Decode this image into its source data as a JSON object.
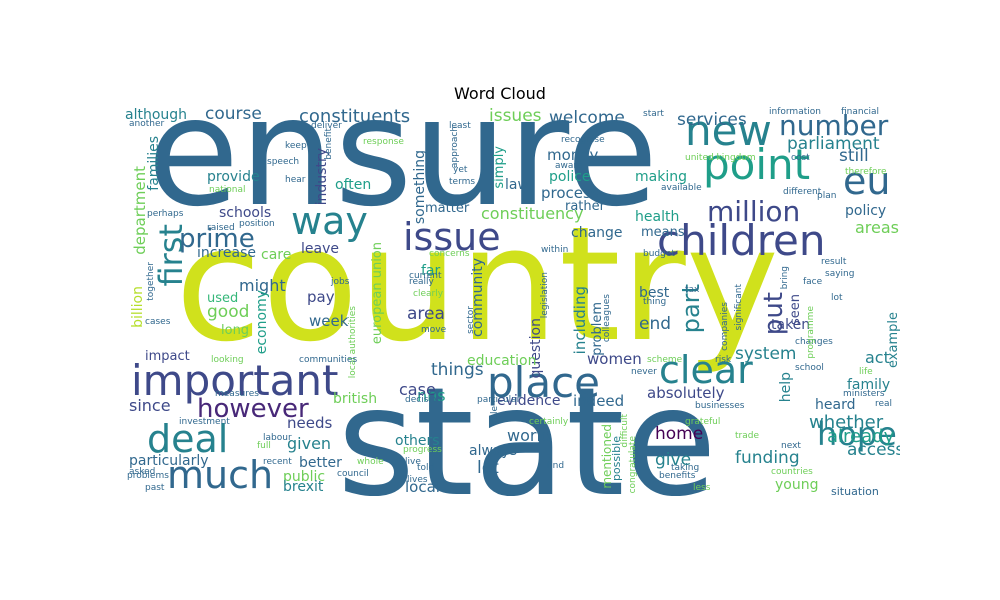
{
  "chart_data": {
    "type": "wordcloud",
    "title": "Word Cloud",
    "palette": [
      "#440154",
      "#482878",
      "#3e4989",
      "#31688e",
      "#26828e",
      "#1f9e89",
      "#35b779",
      "#6ece58",
      "#b5de2b",
      "#d9e21a"
    ],
    "words": [
      {
        "text": "ensure",
        "weight": 100,
        "color": "#31688e"
      },
      {
        "text": "country",
        "weight": 98,
        "color": "#d0e11c"
      },
      {
        "text": "state",
        "weight": 92,
        "color": "#31688e"
      },
      {
        "text": "children",
        "weight": 36,
        "color": "#3e4989"
      },
      {
        "text": "important",
        "weight": 36,
        "color": "#3e4989"
      },
      {
        "text": "point",
        "weight": 34,
        "color": "#1f9e89"
      },
      {
        "text": "new",
        "weight": 34,
        "color": "#26828e"
      },
      {
        "text": "place",
        "weight": 33,
        "color": "#31688e"
      },
      {
        "text": "issue",
        "weight": 32,
        "color": "#3e4989"
      },
      {
        "text": "much",
        "weight": 32,
        "color": "#31688e"
      },
      {
        "text": "clear",
        "weight": 30,
        "color": "#26828e"
      },
      {
        "text": "deal",
        "weight": 30,
        "color": "#26828e"
      },
      {
        "text": "way",
        "weight": 30,
        "color": "#26828e"
      },
      {
        "text": "eu",
        "weight": 28,
        "color": "#31688e"
      },
      {
        "text": "hope",
        "weight": 26,
        "color": "#26828e"
      },
      {
        "text": "first",
        "weight": 26,
        "color": "#26828e"
      },
      {
        "text": "million",
        "weight": 24,
        "color": "#3e4989"
      },
      {
        "text": "number",
        "weight": 24,
        "color": "#31688e"
      },
      {
        "text": "however",
        "weight": 22,
        "color": "#482878"
      },
      {
        "text": "put",
        "weight": 22,
        "color": "#3e4989"
      },
      {
        "text": "prime",
        "weight": 22,
        "color": "#31688e"
      },
      {
        "text": "part",
        "weight": 20,
        "color": "#26828e"
      },
      {
        "text": "constituents",
        "weight": 17,
        "color": "#31688e"
      },
      {
        "text": "parliament",
        "weight": 16,
        "color": "#26828e"
      },
      {
        "text": "services",
        "weight": 16,
        "color": "#31688e"
      },
      {
        "text": "constituency",
        "weight": 16,
        "color": "#6ece58"
      },
      {
        "text": "still",
        "weight": 16,
        "color": "#31688e"
      },
      {
        "text": "welcome",
        "weight": 16,
        "color": "#31688e"
      },
      {
        "text": "course",
        "weight": 16,
        "color": "#31688e"
      },
      {
        "text": "issues",
        "weight": 16,
        "color": "#6ece58"
      },
      {
        "text": "things",
        "weight": 16,
        "color": "#31688e"
      },
      {
        "text": "system",
        "weight": 16,
        "color": "#26828e"
      },
      {
        "text": "policy",
        "weight": 13,
        "color": "#31688e"
      },
      {
        "text": "areas",
        "weight": 14,
        "color": "#6ece58"
      },
      {
        "text": "although",
        "weight": 13,
        "color": "#26828e"
      },
      {
        "text": "department",
        "weight": 14,
        "color": "#6ece58"
      },
      {
        "text": "families",
        "weight": 13,
        "color": "#26828e"
      },
      {
        "text": "money",
        "weight": 14,
        "color": "#31688e"
      },
      {
        "text": "industry",
        "weight": 14,
        "color": "#3e4989"
      },
      {
        "text": "something",
        "weight": 14,
        "color": "#31688e"
      },
      {
        "text": "police",
        "weight": 14,
        "color": "#1f9e89"
      },
      {
        "text": "process",
        "weight": 14,
        "color": "#31688e"
      },
      {
        "text": "making",
        "weight": 13,
        "color": "#1f9e89"
      },
      {
        "text": "often",
        "weight": 13,
        "color": "#1f9e89"
      },
      {
        "text": "law",
        "weight": 13,
        "color": "#31688e"
      },
      {
        "text": "provide",
        "weight": 13,
        "color": "#26828e"
      },
      {
        "text": "simply",
        "weight": 13,
        "color": "#1f9e89"
      },
      {
        "text": "rather",
        "weight": 13,
        "color": "#31688e"
      },
      {
        "text": "matter",
        "weight": 13,
        "color": "#31688e"
      },
      {
        "text": "schools",
        "weight": 14,
        "color": "#3e4989"
      },
      {
        "text": "health",
        "weight": 14,
        "color": "#1f9e89"
      },
      {
        "text": "means",
        "weight": 13,
        "color": "#31688e"
      },
      {
        "text": "change",
        "weight": 13,
        "color": "#31688e"
      },
      {
        "text": "leave",
        "weight": 13,
        "color": "#3e4989"
      },
      {
        "text": "care",
        "weight": 13,
        "color": "#6ece58"
      },
      {
        "text": "increase",
        "weight": 13,
        "color": "#31688e"
      },
      {
        "text": "far",
        "weight": 13,
        "color": "#1f9e89"
      },
      {
        "text": "european union",
        "weight": 13,
        "color": "#6ece58"
      },
      {
        "text": "billion",
        "weight": 13,
        "color": "#b5de2b"
      },
      {
        "text": "might",
        "weight": 16,
        "color": "#31688e"
      },
      {
        "text": "good",
        "weight": 16,
        "color": "#6ece58"
      },
      {
        "text": "pay",
        "weight": 14,
        "color": "#3e4989"
      },
      {
        "text": "area",
        "weight": 14,
        "color": "#3e4989"
      },
      {
        "text": "used",
        "weight": 13,
        "color": "#35b779"
      },
      {
        "text": "long",
        "weight": 13,
        "color": "#6ece58"
      },
      {
        "text": "economy",
        "weight": 13,
        "color": "#1f9e89"
      },
      {
        "text": "week",
        "weight": 13,
        "color": "#31688e"
      },
      {
        "text": "community",
        "weight": 13,
        "color": "#31688e"
      },
      {
        "text": "question",
        "weight": 13,
        "color": "#3e4989"
      },
      {
        "text": "including",
        "weight": 14,
        "color": "#26828e"
      },
      {
        "text": "problem",
        "weight": 13,
        "color": "#31688e"
      },
      {
        "text": "best",
        "weight": 13,
        "color": "#31688e"
      },
      {
        "text": "end",
        "weight": 16,
        "color": "#31688e"
      },
      {
        "text": "women",
        "weight": 14,
        "color": "#3e4989"
      },
      {
        "text": "taken",
        "weight": 13,
        "color": "#3e4989"
      },
      {
        "text": "seen",
        "weight": 13,
        "color": "#3e4989"
      },
      {
        "text": "help",
        "weight": 14,
        "color": "#26828e"
      },
      {
        "text": "heard",
        "weight": 13,
        "color": "#31688e"
      },
      {
        "text": "act",
        "weight": 14,
        "color": "#26828e"
      },
      {
        "text": "family",
        "weight": 13,
        "color": "#26828e"
      },
      {
        "text": "example",
        "weight": 13,
        "color": "#26828e"
      },
      {
        "text": "impact",
        "weight": 13,
        "color": "#3e4989"
      },
      {
        "text": "since",
        "weight": 16,
        "color": "#3e4989"
      },
      {
        "text": "needs",
        "weight": 14,
        "color": "#3e4989"
      },
      {
        "text": "nhs",
        "weight": 14,
        "color": "#1f9e89"
      },
      {
        "text": "education",
        "weight": 13,
        "color": "#6ece58"
      },
      {
        "text": "british",
        "weight": 13,
        "color": "#6ece58"
      },
      {
        "text": "case",
        "weight": 16,
        "color": "#3e4989"
      },
      {
        "text": "evidence",
        "weight": 13,
        "color": "#3e4989"
      },
      {
        "text": "indeed",
        "weight": 13,
        "color": "#31688e"
      },
      {
        "text": "absolutely",
        "weight": 14,
        "color": "#3e4989"
      },
      {
        "text": "whether",
        "weight": 16,
        "color": "#26828e"
      },
      {
        "text": "already",
        "weight": 16,
        "color": "#1f9e89"
      },
      {
        "text": "world",
        "weight": 16,
        "color": "#31688e"
      },
      {
        "text": "home",
        "weight": 16,
        "color": "#440154"
      },
      {
        "text": "given",
        "weight": 16,
        "color": "#26828e"
      },
      {
        "text": "others",
        "weight": 13,
        "color": "#26828e"
      },
      {
        "text": "always",
        "weight": 13,
        "color": "#31688e"
      },
      {
        "text": "give",
        "weight": 16,
        "color": "#26828e"
      },
      {
        "text": "funding",
        "weight": 16,
        "color": "#26828e"
      },
      {
        "text": "access",
        "weight": 16,
        "color": "#26828e"
      },
      {
        "text": "particularly",
        "weight": 13,
        "color": "#31688e"
      },
      {
        "text": "better",
        "weight": 13,
        "color": "#31688e"
      },
      {
        "text": "public",
        "weight": 13,
        "color": "#6ece58"
      },
      {
        "text": "brexit",
        "weight": 13,
        "color": "#26828e"
      },
      {
        "text": "let",
        "weight": 16,
        "color": "#31688e"
      },
      {
        "text": "local",
        "weight": 14,
        "color": "#31688e"
      },
      {
        "text": "young",
        "weight": 13,
        "color": "#6ece58"
      },
      {
        "text": "situation",
        "weight": 11,
        "color": "#31688e"
      },
      {
        "text": "mentioned",
        "weight": 11,
        "color": "#6ece58"
      },
      {
        "text": "possible",
        "weight": 11,
        "color": "#26828e"
      },
      {
        "text": "another",
        "weight": 9,
        "color": "#31688e"
      },
      {
        "text": "deliver",
        "weight": 9,
        "color": "#31688e"
      },
      {
        "text": "least",
        "weight": 9,
        "color": "#31688e"
      },
      {
        "text": "recognise",
        "weight": 9,
        "color": "#31688e"
      },
      {
        "text": "start",
        "weight": 9,
        "color": "#31688e"
      },
      {
        "text": "information",
        "weight": 9,
        "color": "#31688e"
      },
      {
        "text": "financial",
        "weight": 9,
        "color": "#31688e"
      },
      {
        "text": "keep",
        "weight": 9,
        "color": "#31688e"
      },
      {
        "text": "speech",
        "weight": 9,
        "color": "#31688e"
      },
      {
        "text": "response",
        "weight": 9,
        "color": "#6ece58"
      },
      {
        "text": "approach",
        "weight": 9,
        "color": "#31688e"
      },
      {
        "text": "benefit",
        "weight": 9,
        "color": "#31688e"
      },
      {
        "text": "united kingdom",
        "weight": 9,
        "color": "#6ece58"
      },
      {
        "text": "cost",
        "weight": 9,
        "color": "#31688e"
      },
      {
        "text": "therefore",
        "weight": 9,
        "color": "#6ece58"
      },
      {
        "text": "national",
        "weight": 9,
        "color": "#6ece58"
      },
      {
        "text": "hear",
        "weight": 9,
        "color": "#31688e"
      },
      {
        "text": "yet",
        "weight": 9,
        "color": "#31688e"
      },
      {
        "text": "terms",
        "weight": 9,
        "color": "#31688e"
      },
      {
        "text": "aware",
        "weight": 9,
        "color": "#31688e"
      },
      {
        "text": "available",
        "weight": 9,
        "color": "#31688e"
      },
      {
        "text": "different",
        "weight": 9,
        "color": "#31688e"
      },
      {
        "text": "plan",
        "weight": 9,
        "color": "#31688e"
      },
      {
        "text": "perhaps",
        "weight": 9,
        "color": "#31688e"
      },
      {
        "text": "raised",
        "weight": 9,
        "color": "#31688e"
      },
      {
        "text": "position",
        "weight": 9,
        "color": "#31688e"
      },
      {
        "text": "concerns",
        "weight": 9,
        "color": "#6ece58"
      },
      {
        "text": "within",
        "weight": 9,
        "color": "#31688e"
      },
      {
        "text": "current",
        "weight": 9,
        "color": "#31688e"
      },
      {
        "text": "together",
        "weight": 9,
        "color": "#31688e"
      },
      {
        "text": "jobs",
        "weight": 9,
        "color": "#31688e"
      },
      {
        "text": "really",
        "weight": 9,
        "color": "#31688e"
      },
      {
        "text": "clearly",
        "weight": 9,
        "color": "#6ece58"
      },
      {
        "text": "legislation",
        "weight": 9,
        "color": "#31688e"
      },
      {
        "text": "budget",
        "weight": 9,
        "color": "#31688e"
      },
      {
        "text": "tax",
        "weight": 9,
        "color": "#31688e"
      },
      {
        "text": "thing",
        "weight": 9,
        "color": "#31688e"
      },
      {
        "text": "colleagues",
        "weight": 9,
        "color": "#31688e"
      },
      {
        "text": "bring",
        "weight": 9,
        "color": "#31688e"
      },
      {
        "text": "result",
        "weight": 9,
        "color": "#31688e"
      },
      {
        "text": "saying",
        "weight": 9,
        "color": "#31688e"
      },
      {
        "text": "lot",
        "weight": 9,
        "color": "#31688e"
      },
      {
        "text": "changes",
        "weight": 9,
        "color": "#31688e"
      },
      {
        "text": "significant",
        "weight": 9,
        "color": "#31688e"
      },
      {
        "text": "cases",
        "weight": 9,
        "color": "#31688e"
      },
      {
        "text": "sector",
        "weight": 9,
        "color": "#31688e"
      },
      {
        "text": "move",
        "weight": 9,
        "color": "#31688e"
      },
      {
        "text": "local authorities",
        "weight": 9,
        "color": "#6ece58"
      },
      {
        "text": "communities",
        "weight": 9,
        "color": "#31688e"
      },
      {
        "text": "looking",
        "weight": 9,
        "color": "#6ece58"
      },
      {
        "text": "scheme",
        "weight": 9,
        "color": "#6ece58"
      },
      {
        "text": "risk",
        "weight": 9,
        "color": "#31688e"
      },
      {
        "text": "never",
        "weight": 9,
        "color": "#31688e"
      },
      {
        "text": "school",
        "weight": 9,
        "color": "#31688e"
      },
      {
        "text": "life",
        "weight": 9,
        "color": "#6ece58"
      },
      {
        "text": "measures",
        "weight": 9,
        "color": "#31688e"
      },
      {
        "text": "decision",
        "weight": 9,
        "color": "#31688e"
      },
      {
        "text": "businesses",
        "weight": 9,
        "color": "#31688e"
      },
      {
        "text": "ministers",
        "weight": 9,
        "color": "#31688e"
      },
      {
        "text": "real",
        "weight": 9,
        "color": "#31688e"
      },
      {
        "text": "investment",
        "weight": 9,
        "color": "#31688e"
      },
      {
        "text": "labour",
        "weight": 9,
        "color": "#31688e"
      },
      {
        "text": "full",
        "weight": 9,
        "color": "#6ece58"
      },
      {
        "text": "grateful",
        "weight": 9,
        "color": "#6ece58"
      },
      {
        "text": "trade",
        "weight": 9,
        "color": "#6ece58"
      },
      {
        "text": "next",
        "weight": 9,
        "color": "#31688e"
      },
      {
        "text": "recent",
        "weight": 9,
        "color": "#31688e"
      },
      {
        "text": "whole",
        "weight": 9,
        "color": "#6ece58"
      },
      {
        "text": "progress",
        "weight": 9,
        "color": "#6ece58"
      },
      {
        "text": "live",
        "weight": 9,
        "color": "#31688e"
      },
      {
        "text": "told",
        "weight": 9,
        "color": "#31688e"
      },
      {
        "text": "difficult",
        "weight": 9,
        "color": "#6ece58"
      },
      {
        "text": "taking",
        "weight": 9,
        "color": "#31688e"
      },
      {
        "text": "asked",
        "weight": 9,
        "color": "#31688e"
      },
      {
        "text": "problems",
        "weight": 9,
        "color": "#31688e"
      },
      {
        "text": "council",
        "weight": 9,
        "color": "#31688e"
      },
      {
        "text": "find",
        "weight": 9,
        "color": "#31688e"
      },
      {
        "text": "countries",
        "weight": 9,
        "color": "#6ece58"
      },
      {
        "text": "benefits",
        "weight": 9,
        "color": "#31688e"
      },
      {
        "text": "past",
        "weight": 9,
        "color": "#31688e"
      },
      {
        "text": "lives",
        "weight": 9,
        "color": "#31688e"
      },
      {
        "text": "particular",
        "weight": 9,
        "color": "#31688e"
      },
      {
        "text": "certainly",
        "weight": 9,
        "color": "#6ece58"
      },
      {
        "text": "congratulate",
        "weight": 9,
        "color": "#6ece58"
      },
      {
        "text": "less",
        "weight": 9,
        "color": "#6ece58"
      },
      {
        "text": "face",
        "weight": 9,
        "color": "#31688e"
      },
      {
        "text": "programme",
        "weight": 9,
        "color": "#6ece58"
      },
      {
        "text": "role",
        "weight": 9,
        "color": "#31688e"
      },
      {
        "text": "companies",
        "weight": 9,
        "color": "#31688e"
      }
    ]
  }
}
